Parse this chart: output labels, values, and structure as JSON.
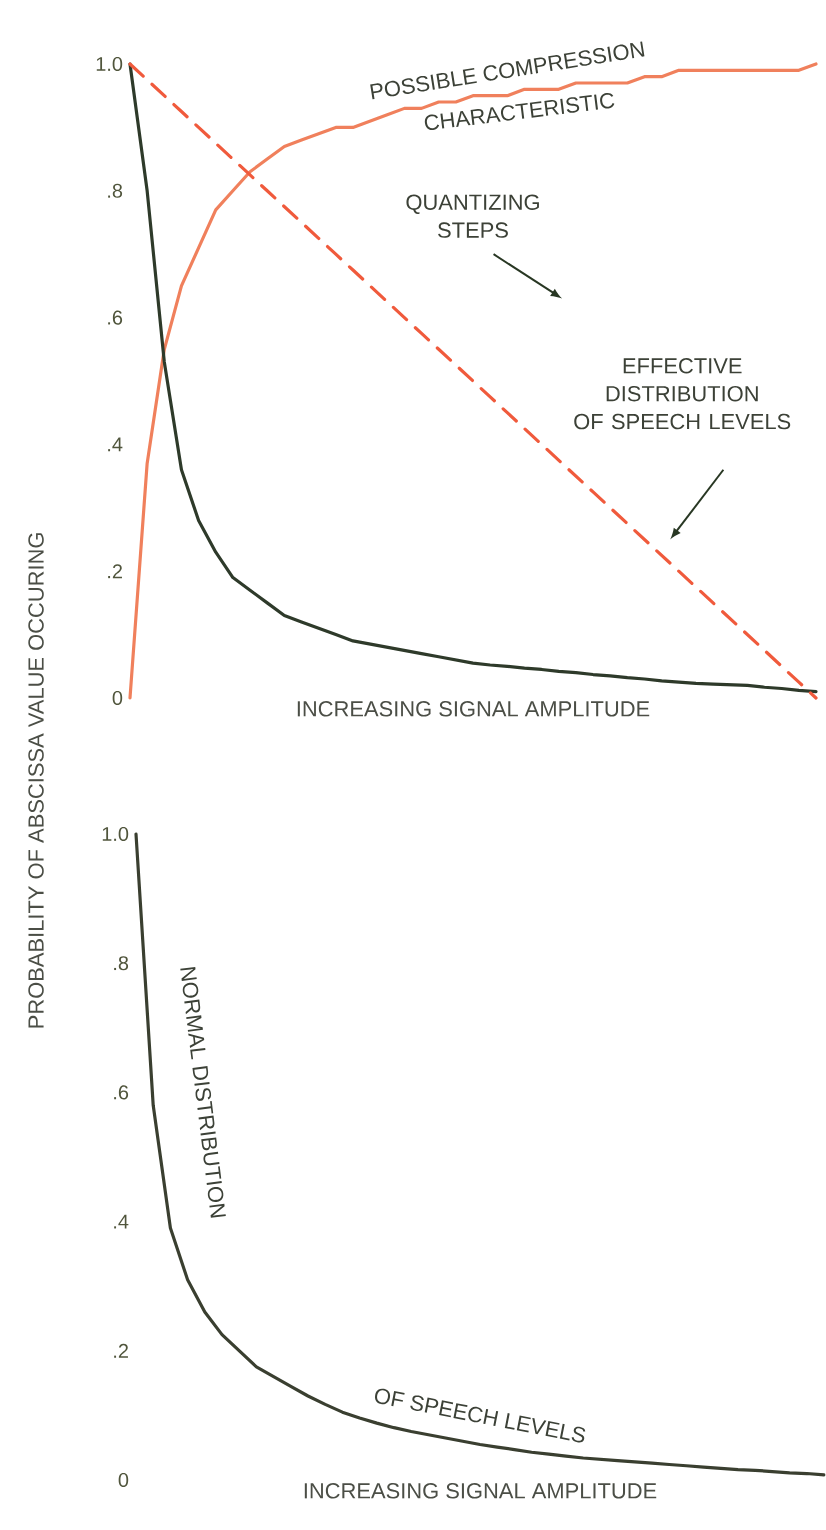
{
  "chart_data": [
    {
      "type": "line",
      "categories": [
        null,
        null,
        null,
        null,
        null,
        null,
        null,
        null,
        null,
        null,
        null,
        null,
        null,
        null,
        null,
        null,
        null,
        null,
        null,
        null,
        null,
        null,
        null,
        null,
        null,
        null,
        null,
        null,
        null,
        null,
        null,
        null,
        null,
        null,
        null,
        null,
        null,
        null,
        null,
        null,
        null
      ],
      "series": [
        {
          "color": "#f0805c",
          "values": [
            0,
            0.37,
            0.55,
            0.65,
            0.71,
            0.77,
            0.8,
            0.83,
            0.85,
            0.87,
            0.88,
            0.89,
            0.9,
            0.9,
            0.91,
            0.92,
            0.93,
            0.93,
            0.94,
            0.94,
            0.95,
            0.95,
            0.95,
            0.96,
            0.96,
            0.96,
            0.97,
            0.97,
            0.97,
            0.97,
            0.98,
            0.98,
            0.99,
            0.99,
            0.99,
            0.99,
            0.99,
            0.99,
            0.99,
            0.99,
            1.0
          ]
        },
        {
          "color": "#2e3a2a",
          "values": [
            1.0,
            0.8,
            0.53,
            0.36,
            0.28,
            0.23,
            0.19,
            0.17,
            0.15,
            0.13,
            0.12,
            0.11,
            0.1,
            0.09,
            0.085,
            0.08,
            0.075,
            0.07,
            0.065,
            0.06,
            0.055,
            0.052,
            0.05,
            0.047,
            0.045,
            0.042,
            0.04,
            0.037,
            0.035,
            0.032,
            0.03,
            0.027,
            0.025,
            0.023,
            0.022,
            0.021,
            0.02,
            0.017,
            0.015,
            0.012,
            0.01
          ]
        },
        {
          "color": "#f05a3c",
          "line_style": "dashed",
          "values": [
            1.0,
            0.975,
            0.95,
            0.925,
            0.9,
            0.875,
            0.85,
            0.825,
            0.8,
            0.775,
            0.75,
            0.725,
            0.7,
            0.675,
            0.65,
            0.625,
            0.6,
            0.575,
            0.55,
            0.525,
            0.5,
            0.475,
            0.45,
            0.425,
            0.4,
            0.375,
            0.35,
            0.325,
            0.3,
            0.275,
            0.25,
            0.225,
            0.2,
            0.175,
            0.15,
            0.125,
            0.1,
            0.075,
            0.05,
            0.025,
            0
          ]
        }
      ],
      "ylim": [
        0,
        1.0
      ],
      "yticks": [
        0,
        {
          "value": 0.2,
          "label": ".2"
        },
        {
          "value": 0.4,
          "label": ".4"
        },
        {
          "value": 0.6,
          "label": ".6"
        },
        {
          "value": 0.8,
          "label": ".8"
        },
        {
          "value": 1.0,
          "label": "1.0"
        }
      ],
      "xlabel": "INCREASING SIGNAL AMPLITUDE",
      "ylabel": "PROBABILITY OF ABSCISSA VALUE OCCURING",
      "annotations": [
        "POSSIBLE COMPRESSION",
        "CHARACTERISTIC",
        "QUANTIZING STEPS",
        "EFFECTIVE DISTRIBUTION OF SPEECH LEVELS"
      ]
    },
    {
      "type": "line",
      "categories": [
        null,
        null,
        null,
        null,
        null,
        null,
        null,
        null,
        null,
        null,
        null,
        null,
        null,
        null,
        null,
        null,
        null,
        null,
        null,
        null,
        null,
        null,
        null,
        null,
        null,
        null,
        null,
        null,
        null,
        null,
        null,
        null,
        null,
        null,
        null,
        null,
        null,
        null,
        null,
        null,
        null
      ],
      "series": [
        {
          "color": "#3a3f30",
          "values": [
            1.0,
            0.58,
            0.39,
            0.31,
            0.26,
            0.225,
            0.2,
            0.175,
            0.16,
            0.145,
            0.13,
            0.117,
            0.105,
            0.096,
            0.088,
            0.081,
            0.075,
            0.07,
            0.065,
            0.06,
            0.055,
            0.051,
            0.047,
            0.043,
            0.04,
            0.037,
            0.034,
            0.032,
            0.03,
            0.028,
            0.026,
            0.024,
            0.022,
            0.02,
            0.018,
            0.016,
            0.015,
            0.013,
            0.011,
            0.01,
            0.008
          ]
        }
      ],
      "ylim": [
        0,
        1.0
      ],
      "yticks": [
        0,
        {
          "value": 0.2,
          "label": ".2"
        },
        {
          "value": 0.4,
          "label": ".4"
        },
        {
          "value": 0.6,
          "label": ".6"
        },
        {
          "value": 0.8,
          "label": ".8"
        },
        {
          "value": 1.0,
          "label": "1.0"
        }
      ],
      "xlabel": "INCREASING SIGNAL AMPLITUDE",
      "annotations": [
        "NORMAL DISTRIBUTION",
        "OF SPEECH LEVELS"
      ]
    }
  ]
}
